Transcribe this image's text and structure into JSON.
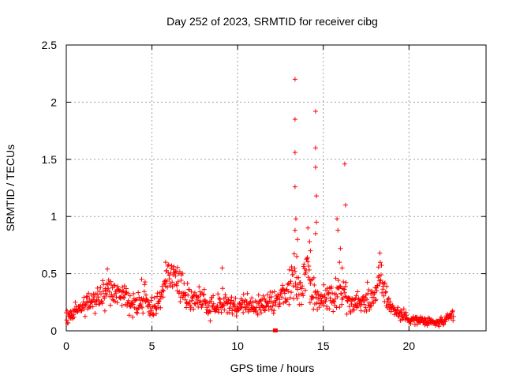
{
  "chart_data": {
    "type": "scatter",
    "title": "Day 252 of 2023, SRMTID for receiver cibg",
    "xlabel": "GPS time / hours",
    "ylabel": "SRMTID / TECUs",
    "xlim": [
      0,
      24.5
    ],
    "ylim": [
      0,
      2.5
    ],
    "xticks": [
      0,
      5,
      10,
      15,
      20
    ],
    "xtick_labels": [
      "0",
      "5",
      "10",
      "15",
      "20"
    ],
    "yticks": [
      0,
      0.5,
      1,
      1.5,
      2,
      2.5
    ],
    "ytick_labels": [
      "0",
      "0.5",
      "1",
      "1.5",
      "2",
      "2.5"
    ],
    "grid": true,
    "legend": "none",
    "marker": "+",
    "marker_color": "#ff0000",
    "series": [
      {
        "name": "SRMTID",
        "baseline": {
          "x": [
            0,
            0.3,
            0.6,
            1.0,
            1.5,
            2.0,
            2.4,
            2.7,
            3.0,
            3.3,
            3.6,
            4.0,
            4.3,
            4.6,
            5.0,
            5.5,
            5.8,
            6.1,
            6.5,
            7.0,
            7.5,
            8.0,
            8.5,
            9.0,
            9.5,
            10.0,
            10.5,
            11.0,
            11.5,
            12.0,
            12.5,
            12.8,
            13.0,
            13.3,
            13.6,
            14.0,
            14.3,
            14.6,
            15.0,
            15.3,
            15.6,
            16.0,
            16.3,
            16.6,
            17.0,
            17.5,
            18.0,
            18.2,
            18.4,
            18.6,
            19.0,
            19.5,
            20.0,
            20.5,
            21.0,
            21.5,
            22.0,
            22.3,
            22.6
          ],
          "y": [
            0.12,
            0.14,
            0.18,
            0.22,
            0.26,
            0.3,
            0.38,
            0.33,
            0.32,
            0.35,
            0.26,
            0.22,
            0.25,
            0.3,
            0.2,
            0.25,
            0.45,
            0.5,
            0.42,
            0.32,
            0.28,
            0.26,
            0.22,
            0.24,
            0.22,
            0.2,
            0.24,
            0.22,
            0.22,
            0.25,
            0.27,
            0.32,
            0.38,
            0.45,
            0.35,
            0.55,
            0.35,
            0.32,
            0.3,
            0.26,
            0.28,
            0.38,
            0.3,
            0.22,
            0.25,
            0.27,
            0.3,
            0.48,
            0.5,
            0.32,
            0.2,
            0.14,
            0.11,
            0.09,
            0.08,
            0.07,
            0.08,
            0.1,
            0.14
          ],
          "spread": [
            0.06,
            0.06,
            0.08,
            0.1,
            0.1,
            0.12,
            0.14,
            0.12,
            0.12,
            0.12,
            0.12,
            0.1,
            0.12,
            0.12,
            0.1,
            0.1,
            0.12,
            0.12,
            0.12,
            0.12,
            0.1,
            0.12,
            0.1,
            0.12,
            0.1,
            0.1,
            0.1,
            0.1,
            0.1,
            0.12,
            0.12,
            0.15,
            0.15,
            0.18,
            0.15,
            0.2,
            0.15,
            0.15,
            0.15,
            0.15,
            0.15,
            0.15,
            0.15,
            0.12,
            0.12,
            0.12,
            0.12,
            0.15,
            0.15,
            0.12,
            0.08,
            0.06,
            0.04,
            0.04,
            0.04,
            0.04,
            0.04,
            0.05,
            0.06
          ]
        },
        "outliers": {
          "x": [
            13.35,
            13.35,
            13.35,
            13.35,
            13.4,
            13.35,
            14.55,
            14.55,
            14.55,
            14.6,
            14.6,
            14.55,
            14.1,
            14.2,
            14.25,
            15.8,
            15.85,
            16.0,
            16.25,
            16.3,
            13.5,
            13.45,
            15.95,
            16.1,
            18.3,
            2.4,
            4.4,
            5.8,
            9.1
          ],
          "y": [
            2.2,
            1.85,
            1.56,
            1.26,
            0.98,
            0.88,
            1.92,
            1.6,
            1.43,
            1.18,
            0.95,
            0.85,
            0.9,
            0.78,
            0.7,
            0.98,
            0.88,
            0.72,
            1.46,
            1.1,
            0.8,
            0.65,
            0.6,
            0.55,
            0.68,
            0.54,
            0.45,
            0.6,
            0.55
          ]
        },
        "isolated": {
          "x": [
            12.2
          ],
          "y": [
            0.0
          ]
        }
      }
    ]
  }
}
